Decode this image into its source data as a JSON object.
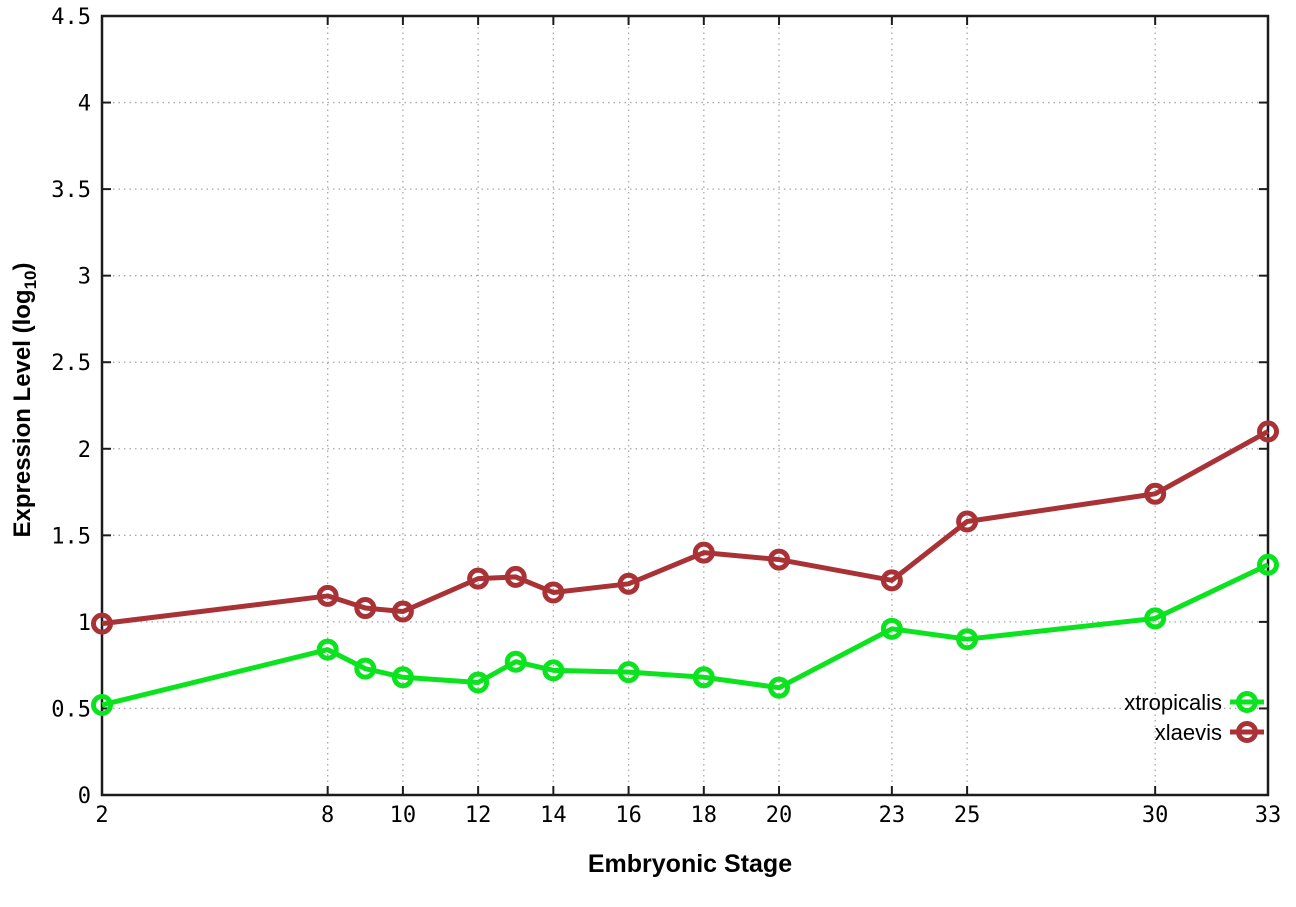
{
  "figure": {
    "background": "#ffffff",
    "axis_color": "#1c1c1c",
    "grid_color": "#a8a8a8",
    "tick_label_color": "#000000"
  },
  "chart_data": {
    "type": "line",
    "title": "",
    "xlabel": "Embryonic Stage",
    "ylabel": "Expression Level (log10)",
    "ylabel_parts": {
      "prefix": "Expression Level (log",
      "sub": "10",
      "suffix": ")"
    },
    "x": [
      2,
      8,
      9,
      10,
      12,
      13,
      14,
      16,
      18,
      20,
      23,
      25,
      30,
      33
    ],
    "xticks": [
      2,
      8,
      10,
      12,
      14,
      16,
      18,
      20,
      23,
      25,
      30,
      33
    ],
    "yticks": [
      0,
      0.5,
      1,
      1.5,
      2,
      2.5,
      3,
      3.5,
      4,
      4.5
    ],
    "ytick_labels": [
      "0",
      "0.5",
      "1",
      "1.5",
      "2",
      "2.5",
      "3",
      "3.5",
      "4",
      "4.5"
    ],
    "xlim": [
      2,
      33
    ],
    "ylim": [
      0,
      4.5
    ],
    "grid": true,
    "marker": "open-circle",
    "legend_position": "inside-bottom-right",
    "series": [
      {
        "name": "xtropicalis",
        "color": "#0ce31f",
        "values": [
          0.52,
          0.84,
          0.73,
          0.68,
          0.65,
          0.77,
          0.72,
          0.71,
          0.68,
          0.62,
          0.96,
          0.9,
          1.02,
          1.33
        ]
      },
      {
        "name": "xlaevis",
        "color": "#a93236",
        "values": [
          0.99,
          1.15,
          1.08,
          1.06,
          1.25,
          1.26,
          1.17,
          1.22,
          1.4,
          1.36,
          1.24,
          1.58,
          1.74,
          2.1
        ]
      }
    ]
  }
}
